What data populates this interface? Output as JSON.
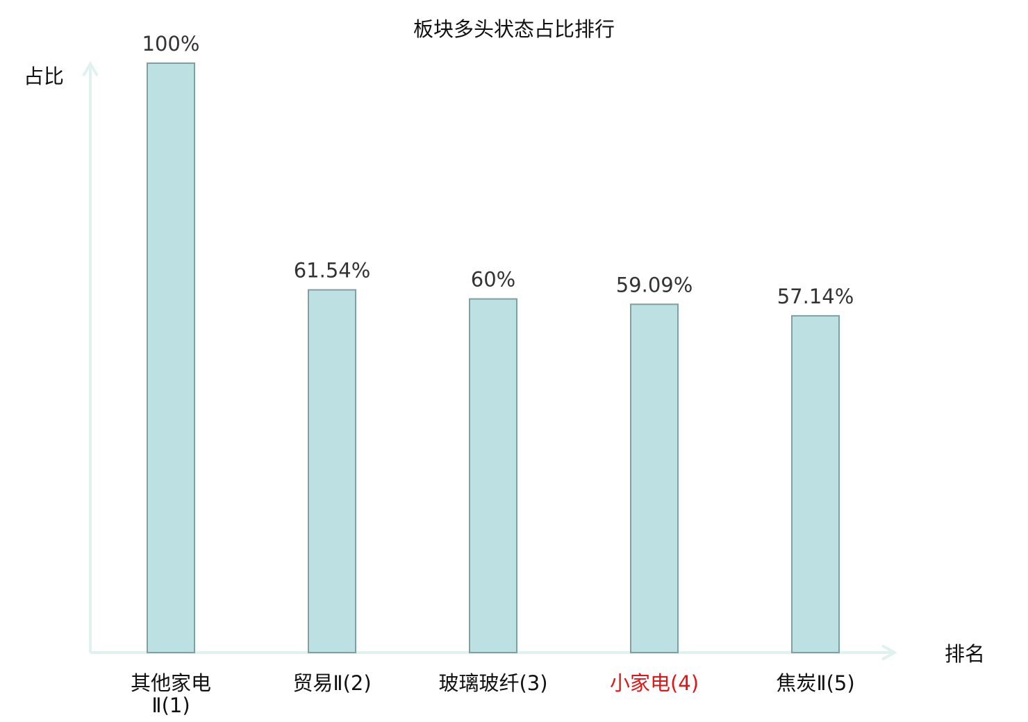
{
  "chart_data": {
    "type": "bar",
    "title": "板块多头状态占比排行",
    "ylabel": "占比",
    "xlabel": "排名",
    "categories": [
      "其他家电Ⅱ(1)",
      "贸易Ⅱ(2)",
      "玻璃玻纤(3)",
      "小家电(4)",
      "焦炭Ⅱ(5)"
    ],
    "category_lines": [
      [
        "其他家电",
        "Ⅱ(1)"
      ],
      [
        "贸易Ⅱ(2)"
      ],
      [
        "玻璃玻纤(3)"
      ],
      [
        "小家电(4)"
      ],
      [
        "焦炭Ⅱ(5)"
      ]
    ],
    "values": [
      100,
      61.54,
      60,
      59.09,
      57.14
    ],
    "value_labels": [
      "100%",
      "61.54%",
      "60%",
      "59.09%",
      "57.14%"
    ],
    "ylim": [
      0,
      100
    ],
    "highlight_index": 3,
    "grid": false,
    "legend": "none"
  },
  "colors": {
    "bar_fill": "#bde0e2",
    "bar_stroke": "#7f9fa0",
    "axis": "#dff2ef",
    "text": "#333333",
    "title": "#111111",
    "highlight": "#e01515"
  }
}
